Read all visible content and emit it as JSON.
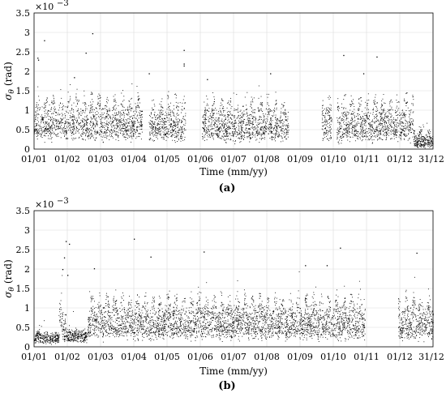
{
  "chart_data": [
    {
      "id": "a",
      "type": "scatter",
      "caption": "(a)",
      "xlabel": "Time (mm/yy)",
      "ylabel_main": "σ",
      "ylabel_sub": "θ",
      "ylabel_unit": "(rad)",
      "yexponent_base": "×10",
      "yexponent_power": "−3",
      "ylim": [
        0,
        3.5
      ],
      "yticks": [
        "0",
        "0.5",
        "1",
        "1.5",
        "2",
        "2.5",
        "3",
        "3.5"
      ],
      "xticks": [
        "01/01",
        "01/02",
        "01/03",
        "01/04",
        "01/05",
        "01/06",
        "01/07",
        "01/08",
        "01/09",
        "01/10",
        "01/11",
        "01/12",
        "31/12"
      ],
      "grid": true,
      "daily_cycle_days": 7,
      "segments": [
        {
          "start_month": 0.0,
          "end_month": 3.25,
          "base": 0.5,
          "peak": 1.3,
          "spread": 0.35,
          "density": 1.0
        },
        {
          "start_month": 3.45,
          "end_month": 4.55,
          "base": 0.45,
          "peak": 1.25,
          "spread": 0.35,
          "density": 1.0
        },
        {
          "start_month": 5.05,
          "end_month": 7.65,
          "base": 0.45,
          "peak": 1.25,
          "spread": 0.35,
          "density": 1.0
        },
        {
          "start_month": 8.65,
          "end_month": 8.95,
          "base": 0.45,
          "peak": 1.2,
          "spread": 0.35,
          "density": 1.0
        },
        {
          "start_month": 9.1,
          "end_month": 11.0,
          "base": 0.45,
          "peak": 1.25,
          "spread": 0.35,
          "density": 1.0
        },
        {
          "start_month": 11.0,
          "end_month": 11.4,
          "base": 0.45,
          "peak": 1.35,
          "spread": 0.35,
          "density": 1.0
        },
        {
          "start_month": 11.4,
          "end_month": 12.0,
          "base": 0.12,
          "peak": 0.5,
          "spread": 0.15,
          "density": 1.0
        }
      ],
      "outliers": [
        {
          "month": 0.3,
          "value": 2.8
        },
        {
          "month": 0.1,
          "value": 2.35
        },
        {
          "month": 0.12,
          "value": 2.3
        },
        {
          "month": 1.75,
          "value": 2.98
        },
        {
          "month": 1.55,
          "value": 2.48
        },
        {
          "month": 1.2,
          "value": 1.85
        },
        {
          "month": 4.5,
          "value": 2.55
        },
        {
          "month": 4.5,
          "value": 2.2
        },
        {
          "month": 4.5,
          "value": 2.15
        },
        {
          "month": 3.45,
          "value": 1.95
        },
        {
          "month": 9.3,
          "value": 2.42
        },
        {
          "month": 10.3,
          "value": 2.38
        },
        {
          "month": 9.9,
          "value": 1.95
        },
        {
          "month": 7.1,
          "value": 1.95
        },
        {
          "month": 5.2,
          "value": 1.8
        }
      ]
    },
    {
      "id": "b",
      "type": "scatter",
      "caption": "(b)",
      "xlabel": "Time (mm/yy)",
      "ylabel_main": "σ",
      "ylabel_sub": "θ",
      "ylabel_unit": "(rad)",
      "yexponent_base": "×10",
      "yexponent_power": "−3",
      "ylim": [
        0,
        3.5
      ],
      "yticks": [
        "0",
        "0.5",
        "1",
        "1.5",
        "2",
        "2.5",
        "3",
        "3.5"
      ],
      "xticks": [
        "01/01",
        "01/02",
        "01/03",
        "01/04",
        "01/05",
        "01/06",
        "01/07",
        "01/08",
        "01/09",
        "01/10",
        "01/11",
        "01/12",
        "31/12"
      ],
      "grid": true,
      "daily_cycle_days": 7,
      "segments": [
        {
          "start_month": 0.0,
          "end_month": 0.75,
          "base": 0.2,
          "peak": 0.35,
          "spread": 0.12,
          "density": 0.9
        },
        {
          "start_month": 0.75,
          "end_month": 0.95,
          "base": 0.3,
          "peak": 1.3,
          "spread": 0.35,
          "density": 0.9
        },
        {
          "start_month": 0.95,
          "end_month": 1.6,
          "base": 0.25,
          "peak": 0.4,
          "spread": 0.12,
          "density": 0.9
        },
        {
          "start_month": 1.6,
          "end_month": 4.6,
          "base": 0.45,
          "peak": 1.25,
          "spread": 0.35,
          "density": 1.0
        },
        {
          "start_month": 4.6,
          "end_month": 9.95,
          "base": 0.45,
          "peak": 1.25,
          "spread": 0.35,
          "density": 1.0
        },
        {
          "start_month": 10.95,
          "end_month": 12.0,
          "base": 0.45,
          "peak": 1.25,
          "spread": 0.35,
          "density": 1.0
        }
      ],
      "outliers": [
        {
          "month": 0.95,
          "value": 2.72
        },
        {
          "month": 1.05,
          "value": 2.65
        },
        {
          "month": 0.9,
          "value": 2.3
        },
        {
          "month": 0.85,
          "value": 2.0
        },
        {
          "month": 1.0,
          "value": 1.85
        },
        {
          "month": 3.0,
          "value": 2.78
        },
        {
          "month": 3.5,
          "value": 2.32
        },
        {
          "month": 5.1,
          "value": 2.45
        },
        {
          "month": 8.15,
          "value": 2.1
        },
        {
          "month": 8.8,
          "value": 2.1
        },
        {
          "month": 9.2,
          "value": 2.55
        },
        {
          "month": 11.5,
          "value": 2.42
        },
        {
          "month": 1.8,
          "value": 2.02
        }
      ]
    }
  ]
}
